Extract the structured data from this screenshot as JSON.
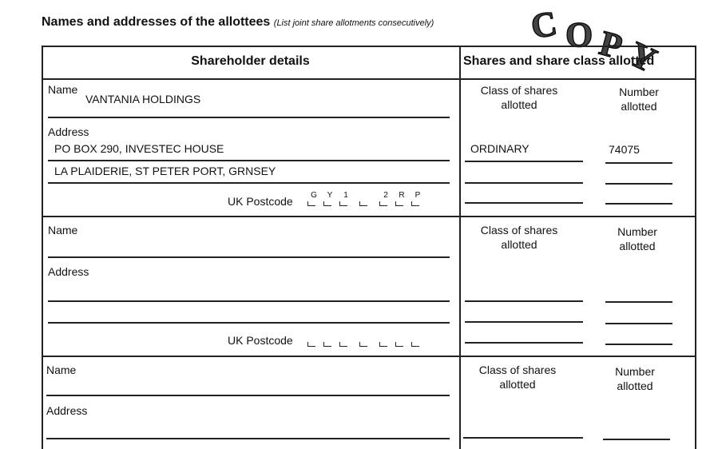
{
  "title": "Names and addresses of the allottees",
  "title_note": "(List joint share allotments consecutively)",
  "stamp": "COPY",
  "headers": {
    "shareholder": "Shareholder details",
    "shares": "Shares and share class allotted"
  },
  "labels": {
    "name": "Name",
    "address": "Address",
    "postcode": "UK Postcode",
    "class": "Class of shares\nallotted",
    "class_line1": "Class of shares",
    "class_line2": "allotted",
    "number_line1": "Number",
    "number_line2": "allotted"
  },
  "allottees": [
    {
      "name": "VANTANIA HOLDINGS",
      "address_line1": "PO BOX 290, INVESTEC HOUSE",
      "address_line2": "LA PLAIDERIE, ST PETER PORT, GRNSEY",
      "postcode": [
        "G",
        "Y",
        "1",
        "",
        "2",
        "R",
        "P"
      ],
      "class": "ORDINARY",
      "number": "74075"
    },
    {
      "name": "",
      "address_line1": "",
      "address_line2": "",
      "postcode": [
        "",
        "",
        "",
        "",
        "",
        "",
        ""
      ],
      "class": "",
      "number": ""
    },
    {
      "name": "",
      "address_line1": "",
      "class": "",
      "number": ""
    }
  ]
}
